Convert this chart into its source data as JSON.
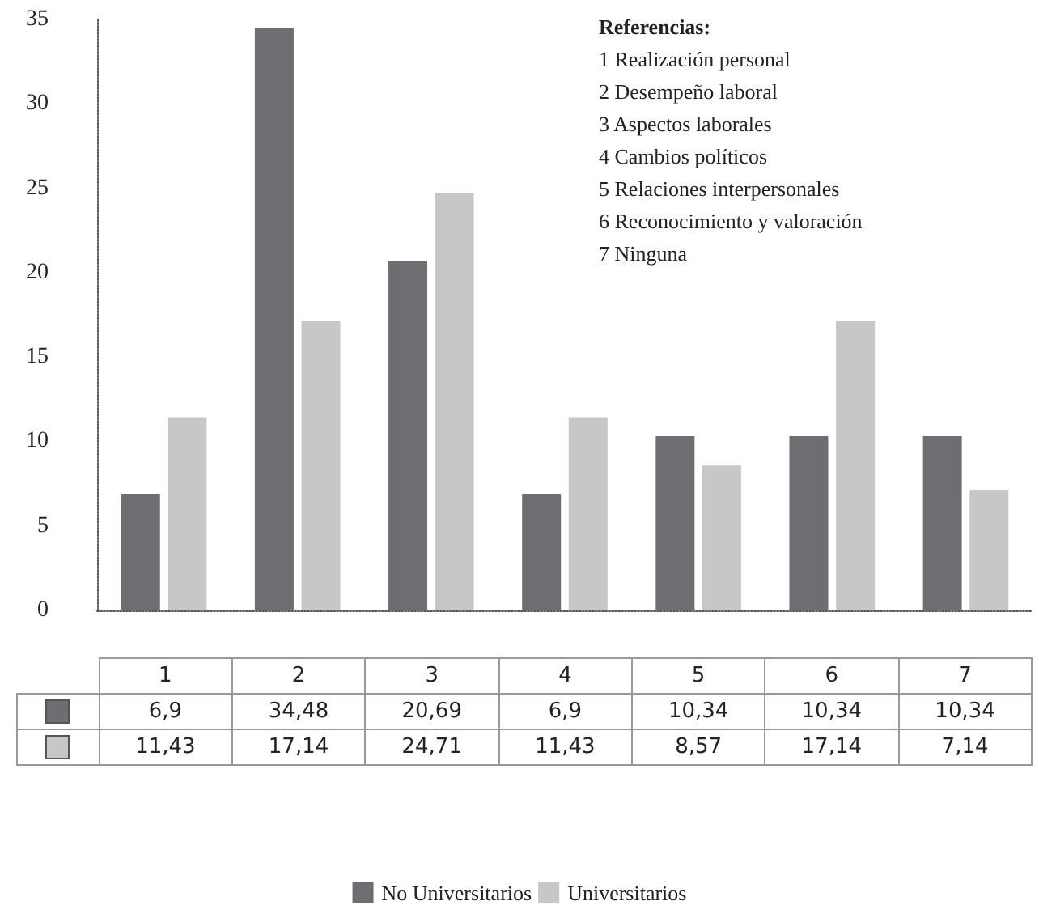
{
  "chart_data": {
    "type": "bar",
    "categories": [
      "1",
      "2",
      "3",
      "4",
      "5",
      "6",
      "7"
    ],
    "series": [
      {
        "name": "No Universitarios",
        "color": "#6d6e71",
        "values": [
          6.9,
          34.48,
          20.69,
          6.9,
          10.34,
          10.34,
          10.34
        ],
        "value_labels": [
          "6,9",
          "34,48",
          "20,69",
          "6,9",
          "10,34",
          "10,34",
          "10,34"
        ]
      },
      {
        "name": "Universitarios",
        "color": "#c6c7c9",
        "values": [
          11.43,
          17.14,
          24.71,
          11.43,
          8.57,
          17.14,
          7.14
        ],
        "value_labels": [
          "11,43",
          "17,14",
          "24,71",
          "11,43",
          "8,57",
          "17,14",
          "7,14"
        ]
      }
    ],
    "ylim": [
      0,
      35
    ],
    "yticks": [
      0,
      5,
      10,
      15,
      20,
      25,
      30,
      35
    ],
    "grid": false,
    "legend": "bottom",
    "tick_labels": "y",
    "annotations": [
      "Referencias:",
      "1 Realización personal",
      "2 Desempeño laboral",
      "3 Aspectos laborales",
      "4 Cambios políticos",
      "5 Relaciones interpersonales",
      "6 Reconocimiento y valoración",
      "7 Ninguna"
    ]
  }
}
